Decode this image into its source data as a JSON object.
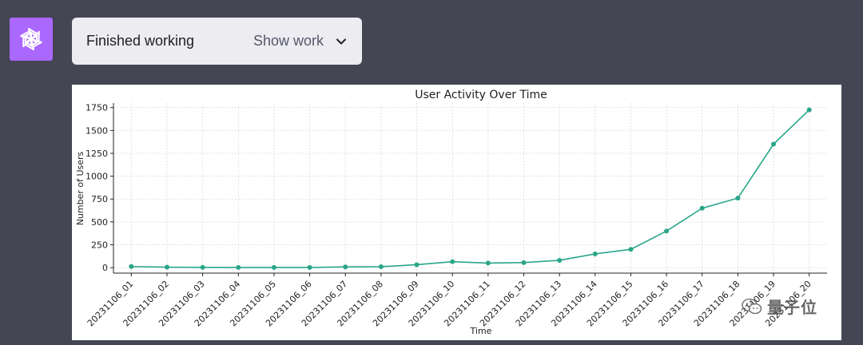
{
  "assistant": {
    "avatar_icon": "openai-logo-icon",
    "avatar_color": "#ab68ff"
  },
  "status": {
    "text": "Finished working",
    "toggle_label": "Show work",
    "toggle_icon": "chevron-down-icon"
  },
  "chart_data": {
    "type": "line",
    "title": "User Activity Over Time",
    "xlabel": "Time",
    "ylabel": "Number of Users",
    "ylim": [
      -60,
      1800
    ],
    "yticks": [
      0,
      250,
      500,
      750,
      1000,
      1250,
      1500,
      1750
    ],
    "grid": true,
    "color": "#2aa58a",
    "categories": [
      "20231106_01",
      "20231106_02",
      "20231106_03",
      "20231106_04",
      "20231106_05",
      "20231106_06",
      "20231106_07",
      "20231106_08",
      "20231106_09",
      "20231106_10",
      "20231106_11",
      "20231106_12",
      "20231106_13",
      "20231106_14",
      "20231106_15",
      "20231106_16",
      "20231106_17",
      "20231106_18",
      "20231106_19",
      "20231106_20"
    ],
    "values": [
      12,
      5,
      3,
      2,
      2,
      2,
      8,
      10,
      32,
      65,
      50,
      55,
      80,
      150,
      200,
      400,
      650,
      760,
      1350,
      1725
    ]
  },
  "watermark": {
    "text": "量子位"
  }
}
